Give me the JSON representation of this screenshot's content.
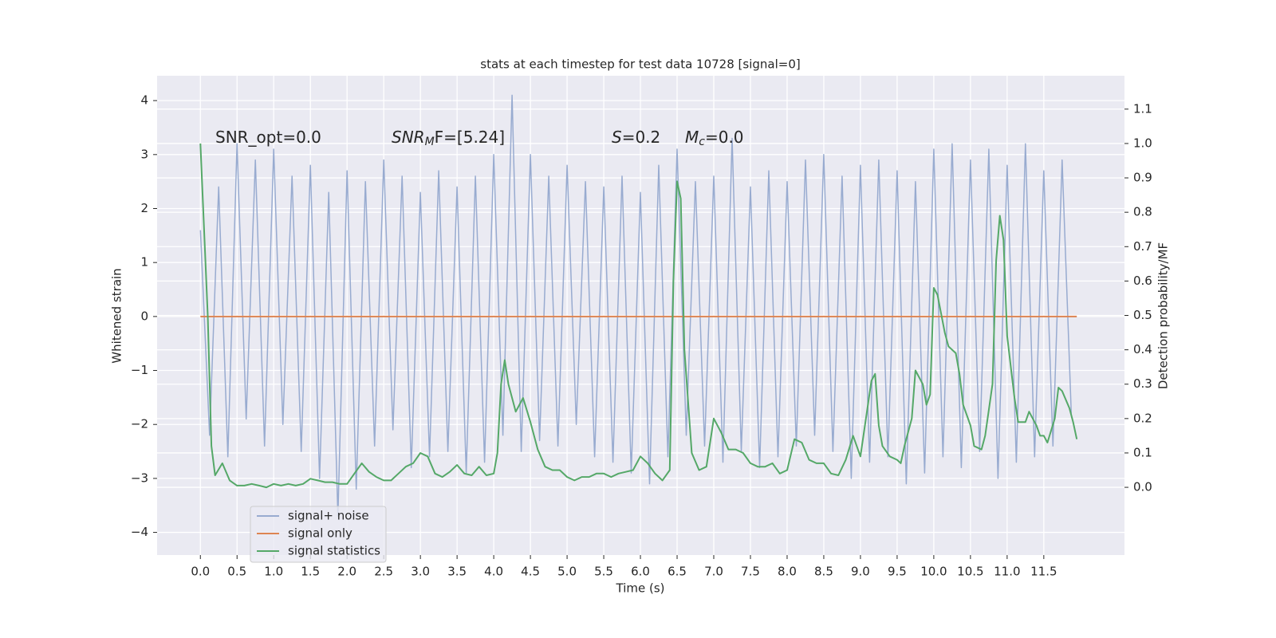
{
  "chart_data": {
    "type": "line",
    "title": "stats at each timestep for test data 10728 [signal=0]",
    "xlabel": "Time (s)",
    "ylabel": "Whitened strain",
    "y2label": "Detection probability/MF",
    "grid": true,
    "legend_position": "lower left",
    "xlim": [
      -0.59,
      12.6
    ],
    "ylim": [
      -4.42,
      4.46
    ],
    "y2lim": [
      -0.197,
      1.197
    ],
    "xticks": [
      {
        "value": 0,
        "label": "0.0"
      },
      {
        "value": 0.5,
        "label": "0.5"
      },
      {
        "value": 1,
        "label": "1.0"
      },
      {
        "value": 1.5,
        "label": "1.5"
      },
      {
        "value": 2,
        "label": "2.0"
      },
      {
        "value": 2.5,
        "label": "2.5"
      },
      {
        "value": 3,
        "label": "3.0"
      },
      {
        "value": 3.5,
        "label": "3.5"
      },
      {
        "value": 4,
        "label": "4.0"
      },
      {
        "value": 4.5,
        "label": "4.5"
      },
      {
        "value": 5,
        "label": "5.0"
      },
      {
        "value": 5.5,
        "label": "5.5"
      },
      {
        "value": 6,
        "label": "6.0"
      },
      {
        "value": 6.5,
        "label": "6.5"
      },
      {
        "value": 7,
        "label": "7.0"
      },
      {
        "value": 7.5,
        "label": "7.5"
      },
      {
        "value": 8,
        "label": "8.0"
      },
      {
        "value": 8.5,
        "label": "8.5"
      },
      {
        "value": 9,
        "label": "9.0"
      },
      {
        "value": 9.5,
        "label": "9.5"
      },
      {
        "value": 10,
        "label": "10.0"
      },
      {
        "value": 10.5,
        "label": "10.5"
      },
      {
        "value": 11,
        "label": "11.0"
      },
      {
        "value": 11.5,
        "label": "11.5"
      }
    ],
    "yticks": [
      {
        "value": -4,
        "label": "−4"
      },
      {
        "value": -3,
        "label": "−3"
      },
      {
        "value": -2,
        "label": "−2"
      },
      {
        "value": -1,
        "label": "−1"
      },
      0,
      1,
      2,
      3,
      4
    ],
    "y2ticks": [
      {
        "value": 0,
        "label": "0.0"
      },
      {
        "value": 0.1,
        "label": "0.1"
      },
      {
        "value": 0.2,
        "label": "0.2"
      },
      {
        "value": 0.3,
        "label": "0.3"
      },
      {
        "value": 0.4,
        "label": "0.4"
      },
      {
        "value": 0.5,
        "label": "0.5"
      },
      {
        "value": 0.6,
        "label": "0.6"
      },
      {
        "value": 0.7,
        "label": "0.7"
      },
      {
        "value": 0.8,
        "label": "0.8"
      },
      {
        "value": 0.9,
        "label": "0.9"
      },
      {
        "value": 1.0,
        "label": "1.0"
      },
      {
        "value": 1.1,
        "label": "1.1"
      }
    ],
    "annotations": [
      {
        "main": "SNR_opt=0.0"
      },
      {
        "main": "SNR",
        "sub": "M",
        "tail": "F=[5.24]"
      },
      {
        "main": "S",
        "tail": "=0.2"
      },
      {
        "main": "M",
        "sub": "c",
        "tail": "=0.0"
      }
    ],
    "series": [
      {
        "name": "signal+ noise",
        "color": "#98abd0",
        "x": [
          0,
          0.125,
          0.25,
          0.375,
          0.5,
          0.625,
          0.75,
          0.875,
          1,
          1.125,
          1.25,
          1.375,
          1.5,
          1.625,
          1.75,
          1.875,
          2,
          2.125,
          2.25,
          2.375,
          2.5,
          2.625,
          2.75,
          2.875,
          3,
          3.125,
          3.25,
          3.375,
          3.5,
          3.625,
          3.75,
          3.875,
          4,
          4.125,
          4.25,
          4.375,
          4.5,
          4.625,
          4.75,
          4.875,
          5,
          5.125,
          5.25,
          5.375,
          5.5,
          5.625,
          5.75,
          5.875,
          6,
          6.125,
          6.25,
          6.375,
          6.5,
          6.625,
          6.75,
          6.875,
          7,
          7.125,
          7.25,
          7.375,
          7.5,
          7.625,
          7.75,
          7.875,
          8,
          8.125,
          8.25,
          8.375,
          8.5,
          8.625,
          8.75,
          8.875,
          9,
          9.125,
          9.25,
          9.375,
          9.5,
          9.625,
          9.75,
          9.875,
          10,
          10.125,
          10.25,
          10.375,
          10.5,
          10.625,
          10.75,
          10.875,
          11,
          11.125,
          11.25,
          11.375,
          11.5,
          11.625,
          11.75,
          11.875
        ],
        "values": [
          1.6,
          -2.2,
          2.4,
          -2.6,
          3.2,
          -1.9,
          2.9,
          -2.4,
          3.1,
          -2.0,
          2.6,
          -2.5,
          2.8,
          -3.0,
          2.3,
          -3.7,
          2.7,
          -3.2,
          2.5,
          -2.4,
          2.9,
          -2.1,
          2.6,
          -2.8,
          2.3,
          -2.6,
          2.7,
          -2.5,
          2.4,
          -2.9,
          2.6,
          -2.7,
          3.0,
          -2.2,
          4.1,
          -2.5,
          3.0,
          -2.3,
          2.6,
          -2.4,
          2.8,
          -2.0,
          2.5,
          -2.6,
          2.4,
          -2.7,
          2.6,
          -2.9,
          2.3,
          -3.1,
          2.8,
          -2.6,
          3.1,
          -2.2,
          2.5,
          -2.4,
          2.6,
          -2.7,
          3.3,
          -2.5,
          2.4,
          -2.8,
          2.7,
          -2.6,
          2.5,
          -2.4,
          2.9,
          -2.2,
          3.0,
          -2.5,
          2.6,
          -3.0,
          2.8,
          -2.7,
          2.9,
          -2.6,
          2.7,
          -3.1,
          2.5,
          -2.9,
          3.1,
          -2.6,
          3.2,
          -2.8,
          2.9,
          -2.5,
          3.1,
          -3.0,
          2.8,
          -2.7,
          3.2,
          -2.6,
          2.7,
          -2.4,
          2.9,
          -1.8
        ]
      },
      {
        "name": "signal only",
        "color": "#dd8452",
        "x": [
          0,
          11.95
        ],
        "values": [
          0,
          0
        ]
      },
      {
        "name": "signal statistics",
        "color": "#55a868",
        "axis": "y2",
        "x": [
          0,
          0.1,
          0.15,
          0.2,
          0.3,
          0.4,
          0.5,
          0.6,
          0.7,
          0.8,
          0.9,
          1.0,
          1.1,
          1.2,
          1.3,
          1.4,
          1.5,
          1.6,
          1.7,
          1.8,
          1.9,
          2.0,
          2.1,
          2.2,
          2.3,
          2.4,
          2.5,
          2.6,
          2.7,
          2.8,
          2.9,
          3.0,
          3.1,
          3.2,
          3.3,
          3.4,
          3.5,
          3.6,
          3.7,
          3.8,
          3.9,
          4.0,
          4.05,
          4.1,
          4.15,
          4.2,
          4.3,
          4.4,
          4.5,
          4.6,
          4.7,
          4.8,
          4.9,
          5.0,
          5.1,
          5.2,
          5.3,
          5.4,
          5.5,
          5.6,
          5.7,
          5.8,
          5.9,
          6.0,
          6.1,
          6.2,
          6.3,
          6.4,
          6.45,
          6.5,
          6.55,
          6.6,
          6.7,
          6.8,
          6.9,
          7.0,
          7.1,
          7.2,
          7.3,
          7.4,
          7.5,
          7.6,
          7.7,
          7.8,
          7.9,
          8.0,
          8.1,
          8.2,
          8.3,
          8.4,
          8.5,
          8.6,
          8.7,
          8.8,
          8.9,
          9.0,
          9.15,
          9.2,
          9.25,
          9.3,
          9.4,
          9.5,
          9.55,
          9.6,
          9.7,
          9.75,
          9.85,
          9.9,
          9.95,
          10.0,
          10.05,
          10.15,
          10.2,
          10.3,
          10.35,
          10.4,
          10.5,
          10.55,
          10.65,
          10.7,
          10.8,
          10.85,
          10.9,
          10.95,
          11.0,
          11.1,
          11.15,
          11.25,
          11.3,
          11.4,
          11.45,
          11.5,
          11.55,
          11.65,
          11.7,
          11.75,
          11.85,
          11.9,
          11.95
        ],
        "values": [
          1.0,
          0.5,
          0.12,
          0.035,
          0.07,
          0.02,
          0.005,
          0.005,
          0.01,
          0.005,
          0.0,
          0.01,
          0.005,
          0.01,
          0.005,
          0.01,
          0.025,
          0.02,
          0.015,
          0.015,
          0.01,
          0.01,
          0.04,
          0.07,
          0.045,
          0.03,
          0.02,
          0.02,
          0.04,
          0.06,
          0.07,
          0.1,
          0.09,
          0.04,
          0.03,
          0.045,
          0.065,
          0.04,
          0.035,
          0.06,
          0.035,
          0.04,
          0.1,
          0.3,
          0.37,
          0.3,
          0.22,
          0.26,
          0.19,
          0.11,
          0.06,
          0.05,
          0.05,
          0.03,
          0.02,
          0.03,
          0.03,
          0.04,
          0.04,
          0.03,
          0.04,
          0.045,
          0.05,
          0.09,
          0.07,
          0.04,
          0.02,
          0.05,
          0.6,
          0.89,
          0.84,
          0.4,
          0.1,
          0.05,
          0.06,
          0.2,
          0.16,
          0.11,
          0.11,
          0.1,
          0.07,
          0.06,
          0.06,
          0.07,
          0.04,
          0.05,
          0.14,
          0.13,
          0.08,
          0.07,
          0.07,
          0.04,
          0.035,
          0.08,
          0.15,
          0.09,
          0.31,
          0.33,
          0.18,
          0.12,
          0.09,
          0.08,
          0.07,
          0.12,
          0.2,
          0.34,
          0.3,
          0.24,
          0.27,
          0.58,
          0.56,
          0.45,
          0.41,
          0.39,
          0.33,
          0.24,
          0.18,
          0.12,
          0.11,
          0.15,
          0.3,
          0.66,
          0.79,
          0.72,
          0.44,
          0.26,
          0.19,
          0.19,
          0.22,
          0.18,
          0.15,
          0.15,
          0.13,
          0.2,
          0.29,
          0.28,
          0.23,
          0.19,
          0.14
        ]
      }
    ]
  }
}
